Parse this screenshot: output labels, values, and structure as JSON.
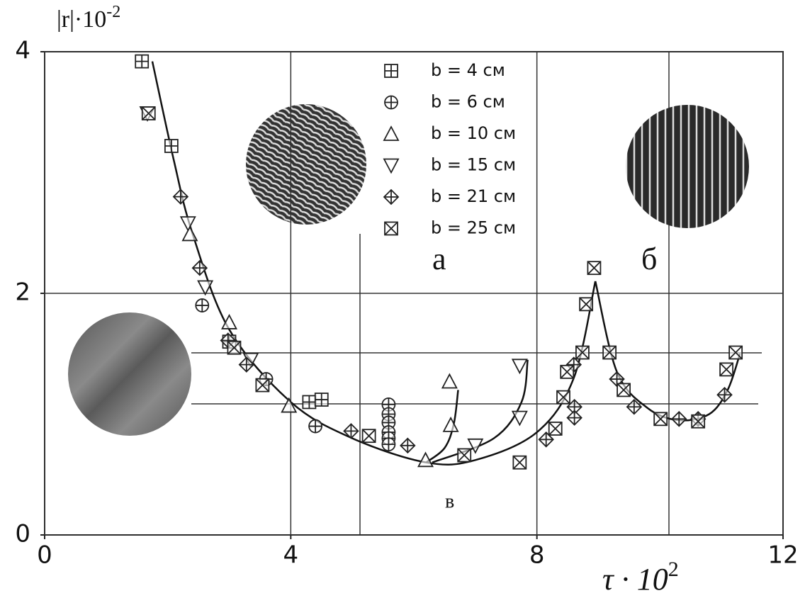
{
  "chart_data": {
    "type": "scatter",
    "y_label": "|r|·10",
    "y_label_exp": "-2",
    "x_label": "τ · 10",
    "x_label_exp": "2",
    "xlim": [
      0,
      12
    ],
    "xticks": [
      0,
      4,
      8,
      12
    ],
    "ylim": [
      0,
      4
    ],
    "yticks": [
      0,
      2,
      4
    ],
    "grid": true,
    "legend": "upper center",
    "annotations": [
      "а",
      "б",
      "в"
    ],
    "series": [
      {
        "name": "b = 4 см",
        "marker": "square-plus",
        "color": "#222",
        "x": [
          1.58,
          2.06,
          3.0,
          4.3,
          4.5
        ],
        "values": [
          3.92,
          3.22,
          1.6,
          1.1,
          1.12
        ]
      },
      {
        "name": "b = 6 см",
        "marker": "circle-plus",
        "color": "#222",
        "x": [
          2.56,
          3.6,
          4.4,
          5.59,
          5.59,
          5.59,
          5.59,
          5.59,
          5.59
        ],
        "values": [
          1.9,
          1.29,
          0.9,
          1.08,
          1.0,
          0.93,
          0.85,
          0.8,
          0.75
        ]
      },
      {
        "name": "b = 10 см",
        "marker": "triangle-up",
        "color": "#222",
        "x": [
          2.36,
          3.0,
          3.97,
          6.19,
          6.6,
          6.58
        ],
        "values": [
          2.49,
          1.76,
          1.07,
          0.62,
          0.91,
          1.27
        ]
      },
      {
        "name": "b = 15 см",
        "marker": "triangle-down",
        "color": "#222",
        "x": [
          1.67,
          2.33,
          2.61,
          3.35,
          7.0,
          7.72,
          7.72
        ],
        "values": [
          3.49,
          2.58,
          2.05,
          1.45,
          0.74,
          0.97,
          1.4
        ]
      },
      {
        "name": "b = 21 см",
        "marker": "diamond-plus",
        "color": "#222",
        "x": [
          2.21,
          2.52,
          2.98,
          3.28,
          4.98,
          5.9,
          8.15,
          8.61,
          8.61,
          8.6,
          9.3,
          9.58,
          10.31,
          10.62,
          11.05
        ],
        "values": [
          2.8,
          2.21,
          1.61,
          1.41,
          0.86,
          0.74,
          0.79,
          1.06,
          0.97,
          1.41,
          1.29,
          1.06,
          0.96,
          0.96,
          1.16
        ]
      },
      {
        "name": "b = 25 см",
        "marker": "square-x",
        "color": "#222",
        "x": [
          1.69,
          3.08,
          3.54,
          5.27,
          6.82,
          7.72,
          8.3,
          8.43,
          8.49,
          8.74,
          8.8,
          8.93,
          9.18,
          9.41,
          10.01,
          10.62,
          11.08,
          11.23
        ],
        "values": [
          3.49,
          1.55,
          1.24,
          0.82,
          0.66,
          0.6,
          0.88,
          1.14,
          1.35,
          1.51,
          1.91,
          2.21,
          1.51,
          1.2,
          0.96,
          0.94,
          1.37,
          1.51
        ]
      }
    ],
    "fit_curves": [
      {
        "x": [
          1.75,
          2.1,
          2.4,
          3.0,
          4.0,
          5.0,
          6.2,
          7.0,
          8.0,
          8.6,
          8.95
        ],
        "values": [
          3.92,
          3.1,
          2.5,
          1.7,
          1.1,
          0.8,
          0.6,
          0.62,
          0.85,
          1.3,
          2.1
        ]
      },
      {
        "x": [
          6.2,
          6.5,
          6.65,
          6.72
        ],
        "values": [
          0.6,
          0.72,
          0.92,
          1.2
        ]
      },
      {
        "x": [
          6.3,
          7.3,
          7.75,
          7.85
        ],
        "values": [
          0.6,
          0.8,
          1.1,
          1.45
        ]
      },
      {
        "x": [
          8.95,
          9.3,
          9.8,
          10.3,
          10.8,
          11.1,
          11.3
        ],
        "values": [
          2.1,
          1.35,
          1.05,
          0.95,
          1.0,
          1.2,
          1.5
        ]
      }
    ]
  }
}
